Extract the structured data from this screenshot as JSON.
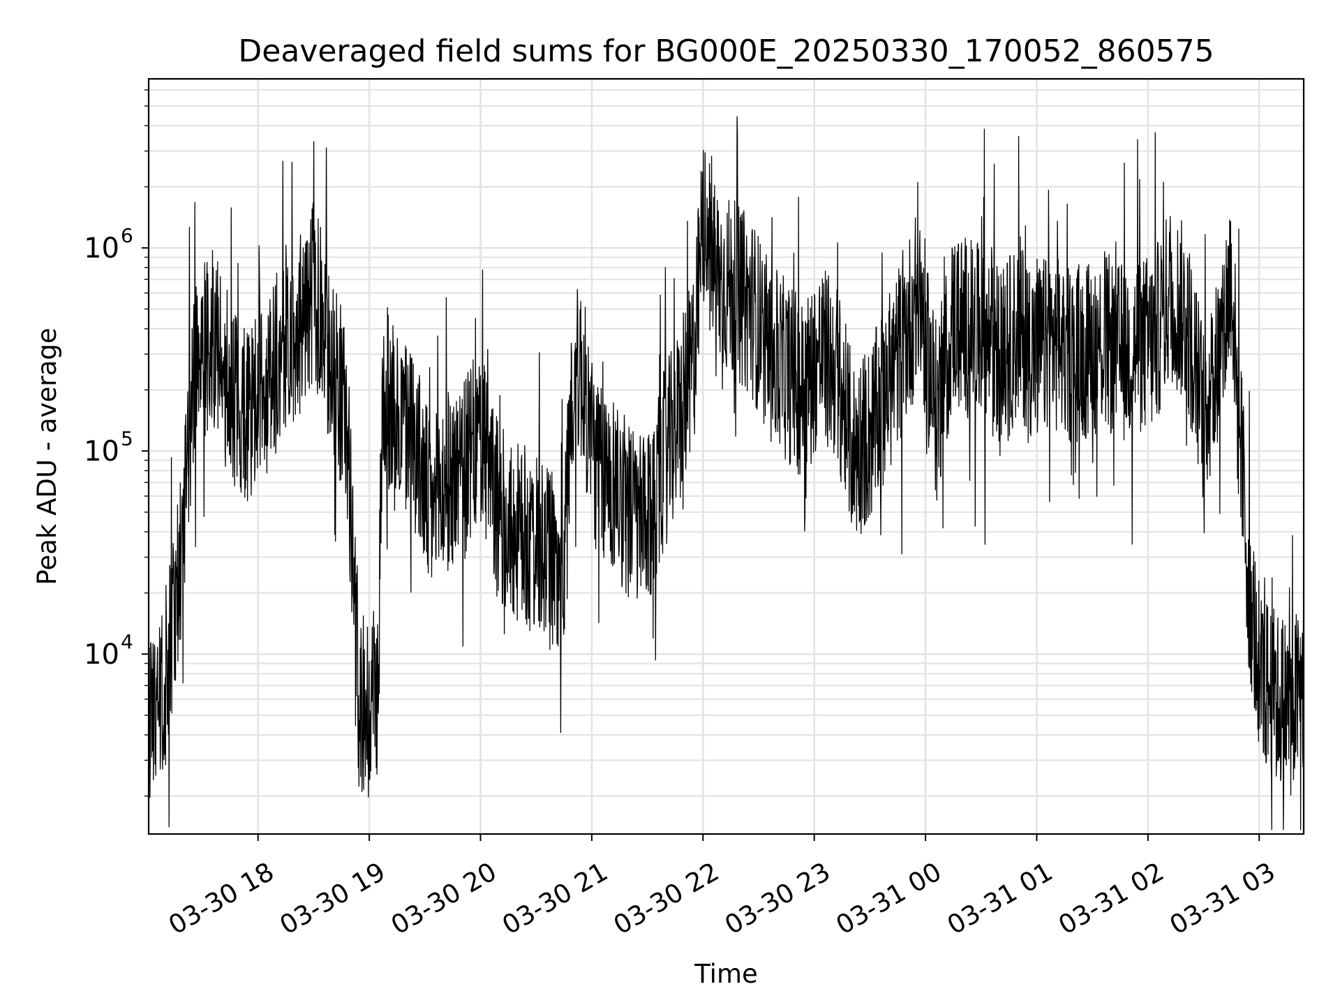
{
  "chart_data": {
    "type": "line",
    "title": "Deaveraged field sums for BG000E_20250330_170052_860575",
    "xlabel": "Time",
    "ylabel": "Peak ADU - average",
    "yscale": "log",
    "grid": true,
    "grid_minor": true,
    "xlim": [
      "2025-03-30 17:01",
      "2025-03-31 03:24"
    ],
    "ylim": [
      1300,
      6800000
    ],
    "x_ticks": [
      "03-30 18",
      "03-30 19",
      "03-30 20",
      "03-30 21",
      "03-30 22",
      "03-30 23",
      "03-31 00",
      "03-31 01",
      "03-31 02",
      "03-31 03"
    ],
    "x_tick_hours": [
      18,
      19,
      20,
      21,
      22,
      23,
      24,
      25,
      26,
      27
    ],
    "y_ticks": [
      {
        "value": 10000,
        "base": "10",
        "exp": "4"
      },
      {
        "value": 100000,
        "base": "10",
        "exp": "5"
      },
      {
        "value": 1000000,
        "base": "10",
        "exp": "6"
      }
    ],
    "series": [
      {
        "color": "#000000",
        "x_hours": [
          17.02,
          17.15,
          17.3,
          17.45,
          17.6,
          17.75,
          17.9,
          18.05,
          18.2,
          18.35,
          18.5,
          18.65,
          18.78,
          18.83,
          18.9,
          19.0,
          19.08,
          19.12,
          19.25,
          19.4,
          19.55,
          19.7,
          19.85,
          20.0,
          20.15,
          20.3,
          20.45,
          20.6,
          20.75,
          20.82,
          20.9,
          21.05,
          21.2,
          21.35,
          21.5,
          21.65,
          21.8,
          21.92,
          22.0,
          22.15,
          22.3,
          22.45,
          22.6,
          22.75,
          22.9,
          23.05,
          23.2,
          23.35,
          23.5,
          23.65,
          23.8,
          23.95,
          24.1,
          24.25,
          24.4,
          24.55,
          24.7,
          24.85,
          25.0,
          25.15,
          25.3,
          25.45,
          25.6,
          25.75,
          25.9,
          26.05,
          26.2,
          26.35,
          26.5,
          26.65,
          26.75,
          26.8,
          26.85,
          26.9,
          27.0,
          27.15,
          27.3,
          27.4
        ],
        "y": [
          5000,
          6500,
          30000,
          300000,
          350000,
          200000,
          150000,
          200000,
          300000,
          400000,
          600000,
          300000,
          160000,
          60000,
          5500,
          6000,
          7000,
          200000,
          150000,
          120000,
          50000,
          70000,
          80000,
          120000,
          50000,
          40000,
          35000,
          30000,
          25000,
          200000,
          250000,
          80000,
          70000,
          50000,
          40000,
          90000,
          150000,
          300000,
          1300000,
          700000,
          600000,
          500000,
          300000,
          250000,
          200000,
          300000,
          250000,
          100000,
          120000,
          200000,
          350000,
          600000,
          150000,
          450000,
          400000,
          350000,
          300000,
          400000,
          300000,
          350000,
          300000,
          320000,
          350000,
          300000,
          330000,
          340000,
          600000,
          450000,
          150000,
          300000,
          800000,
          200000,
          80000,
          25000,
          8000,
          6000,
          5500,
          7000
        ]
      }
    ]
  }
}
